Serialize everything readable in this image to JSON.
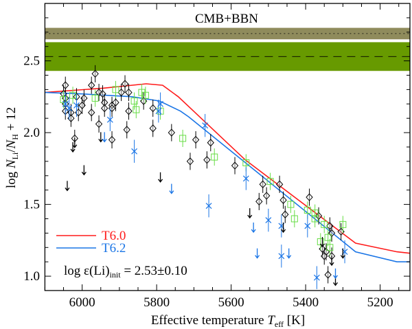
{
  "chart_data": {
    "type": "scatter",
    "xlabel": "Effective temperature",
    "xlabel_symbol": "T",
    "xlabel_sub": "eff",
    "xlabel_unit": "[K]",
    "ylabel_parts": {
      "log": "log ",
      "n1": "N",
      "s1": "Li",
      "slash": "/",
      "n2": "N",
      "s2": "H",
      "tail": " + 12"
    },
    "xlim": [
      6100,
      5120
    ],
    "ylim": [
      0.9,
      2.9
    ],
    "x_reversed": true,
    "x_ticks": [
      6000,
      5800,
      5600,
      5400,
      5200
    ],
    "x_tick_labels": [
      "6000",
      "5800",
      "5600",
      "5400",
      "5200"
    ],
    "y_ticks": [
      1.0,
      1.5,
      2.0,
      2.5
    ],
    "y_tick_labels": [
      "1.0",
      "1.5",
      "2.0",
      "2.5"
    ],
    "grid": false,
    "bands": [
      {
        "label": "CMB+BBN",
        "range": [
          2.65,
          2.73
        ],
        "center": 2.69,
        "line": "dotted",
        "color": "#8f8b5c"
      },
      {
        "range": [
          2.43,
          2.63
        ],
        "center": 2.53,
        "line": "dashed",
        "color": "#679a00"
      }
    ],
    "band_title": "CMB+BBN",
    "annotation": {
      "prefix": "log ε(Li)",
      "sub": "init",
      "suffix": " = 2.53±0.10"
    },
    "legend_position": "bottom-left",
    "lines": [
      {
        "name": "T6.0",
        "color": "#ff1a1a",
        "x": [
          6100,
          5942,
          5828,
          5784,
          5742,
          5705,
          5562,
          5266,
          5155,
          5120
        ],
        "y": [
          2.28,
          2.31,
          2.34,
          2.33,
          2.25,
          2.16,
          1.81,
          1.23,
          1.17,
          1.16
        ]
      },
      {
        "name": "T6.2",
        "color": "#1a75e6",
        "x": [
          6100,
          6001,
          5866,
          5792,
          5736,
          5714,
          5266,
          5155,
          5120
        ],
        "y": [
          2.28,
          2.27,
          2.25,
          2.22,
          2.15,
          2.11,
          1.17,
          1.1,
          1.1
        ]
      }
    ],
    "series": [
      {
        "marker": "diamond",
        "color": "#000000",
        "err": 0.06,
        "x": [
          5965,
          6045,
          5975,
          5885,
          6050,
          6045,
          6015,
          5995,
          5955,
          5945,
          5895,
          5875,
          5835,
          6045,
          6045,
          6030,
          6030,
          6010,
          6000,
          5975,
          5940,
          5940,
          5920,
          5920,
          5910,
          5875,
          5810,
          5955,
          5880,
          5810,
          5760,
          6020,
          5920,
          5710,
          5695,
          5655,
          5665,
          5590,
          5515,
          5470,
          5505,
          5525,
          5460,
          5455,
          5390,
          5365,
          5335,
          5330,
          5305,
          5355,
          5345,
          5350,
          5330,
          5340
        ],
        "y": [
          2.41,
          2.33,
          2.33,
          2.34,
          2.27,
          2.24,
          2.25,
          2.24,
          2.28,
          2.27,
          2.28,
          2.28,
          2.22,
          2.2,
          2.15,
          2.14,
          2.1,
          2.14,
          2.19,
          2.14,
          2.21,
          2.17,
          2.19,
          2.17,
          2.21,
          2.15,
          2.17,
          2.06,
          2.02,
          2.03,
          2.0,
          1.96,
          1.95,
          1.8,
          1.95,
          1.93,
          1.81,
          1.77,
          1.64,
          1.64,
          1.56,
          1.52,
          1.53,
          1.43,
          1.55,
          1.42,
          1.35,
          1.3,
          1.31,
          1.19,
          1.17,
          1.14,
          1.14,
          1.01
        ]
      },
      {
        "marker": "square",
        "color": "#66dd44",
        "err": 0.06,
        "x": [
          6050,
          6025,
          5965,
          5910,
          5860,
          5855,
          5840,
          5830,
          5790,
          5730,
          5645,
          5560,
          5495,
          5440,
          5430,
          5395,
          5375,
          5375,
          5350,
          5340,
          5360,
          5335,
          5300
        ],
        "y": [
          2.23,
          2.26,
          2.24,
          2.3,
          2.22,
          2.16,
          2.28,
          2.26,
          2.15,
          1.96,
          1.83,
          1.79,
          1.66,
          1.5,
          1.4,
          1.46,
          1.44,
          1.4,
          1.36,
          1.27,
          1.24,
          1.2,
          1.36
        ]
      },
      {
        "marker": "cross",
        "color": "#1a75e6",
        "err": 0.08,
        "x": [
          6045,
          6035,
          6015,
          5925,
          5860,
          5790,
          5795,
          5670,
          5560,
          5660,
          5500,
          5465,
          5395,
          5465,
          5370,
          5295
        ],
        "y": [
          2.2,
          2.17,
          2.19,
          2.09,
          1.87,
          2.2,
          2.15,
          2.05,
          1.68,
          1.49,
          1.39,
          1.35,
          1.35,
          1.14,
          0.99,
          1.17
        ]
      },
      {
        "marker": "upper-limit",
        "color": "#000000",
        "x": [
          6025,
          6020,
          5995,
          6040,
          5950,
          5790,
          5550,
          5460,
          5355,
          5330,
          5300,
          5320
        ],
        "y": [
          1.9,
          1.93,
          1.74,
          1.63,
          1.97,
          1.69,
          1.44,
          1.34,
          1.24,
          1.11,
          1.16,
          0.97
        ]
      },
      {
        "marker": "upper-limit",
        "color": "#1a75e6",
        "x": [
          5940,
          5760,
          5540,
          5530,
          5445,
          5320
        ],
        "y": [
          1.97,
          1.61,
          1.34,
          1.16,
          1.16,
          1.02
        ]
      }
    ]
  }
}
